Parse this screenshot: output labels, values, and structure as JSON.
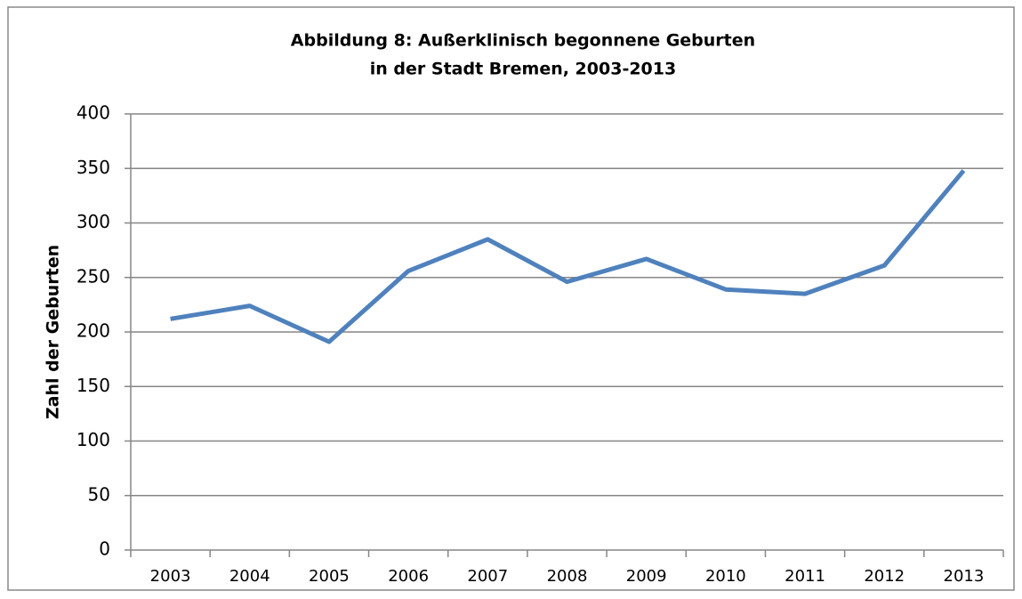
{
  "chart_data": {
    "type": "line",
    "title": [
      "Abbildung  8: Außerklinisch begonnene Geburten",
      "in der Stadt Bremen, 2003-2013"
    ],
    "y_label": "Zahl der Geburten",
    "categories": [
      "2003",
      "2004",
      "2005",
      "2006",
      "2007",
      "2008",
      "2009",
      "2010",
      "2011",
      "2012",
      "2013"
    ],
    "series": [
      {
        "name": "Zahl der Geburten",
        "color": "#4f81bd",
        "values": [
          212,
          224,
          191,
          256,
          285,
          246,
          267,
          239,
          235,
          261,
          348
        ]
      }
    ],
    "ylim": [
      0,
      400
    ],
    "yticks": [
      0,
      50,
      100,
      150,
      200,
      250,
      300,
      350,
      400
    ],
    "grid": true
  }
}
